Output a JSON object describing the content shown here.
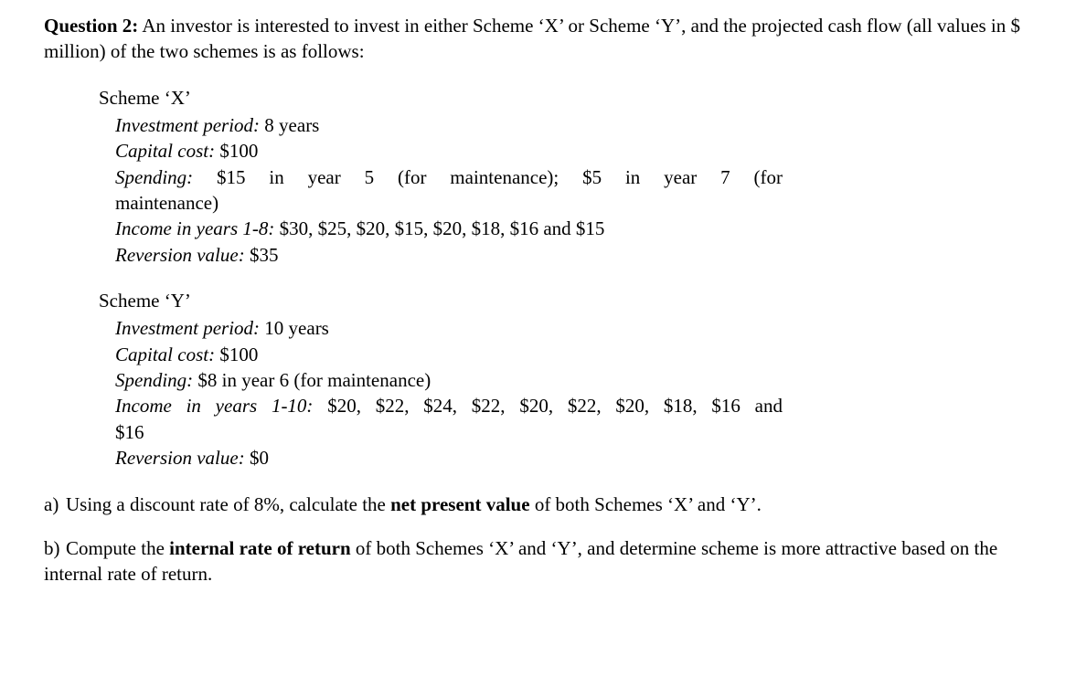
{
  "question": {
    "label": "Question 2:",
    "intro": "An investor is interested to invest in either Scheme ‘X’ or Scheme ‘Y’, and the projected cash flow (all values in $ million) of the two schemes is as follows:"
  },
  "schemeX": {
    "title": "Scheme ‘X’",
    "investment_period_label": "Investment period:",
    "investment_period_value": "8 years",
    "capital_cost_label": "Capital cost:",
    "capital_cost_value": "$100",
    "spending_label": "Spending:",
    "spending_line1_rest": "$15 in year 5 (for maintenance); $5 in year 7 (for",
    "spending_line2": "maintenance)",
    "income_label": "Income in years 1-8:",
    "income_value": "$30, $25, $20, $15, $20, $18, $16 and $15",
    "reversion_label": "Reversion value:",
    "reversion_value": "$35"
  },
  "schemeY": {
    "title": "Scheme ‘Y’",
    "investment_period_label": "Investment period:",
    "investment_period_value": "10 years",
    "capital_cost_label": "Capital cost:",
    "capital_cost_value": "$100",
    "spending_label": "Spending:",
    "spending_value": "$8 in year 6 (for maintenance)",
    "income_label": "Income in years 1-10:",
    "income_line1_rest": "$20, $22, $24, $22, $20, $22, $20, $18, $16 and",
    "income_line2": "$16",
    "reversion_label": "Reversion value:",
    "reversion_value": "$0"
  },
  "parts": {
    "a_marker": "a)",
    "a_pre": "Using a discount rate of 8%, calculate the ",
    "a_bold": "net present value",
    "a_post": " of both Schemes ‘X’ and ‘Y’.",
    "b_marker": "b)",
    "b_pre": "Compute the ",
    "b_bold": "internal rate of return",
    "b_post": " of both Schemes ‘X’ and ‘Y’, and determine scheme is more attractive based on the internal rate of return."
  },
  "style": {
    "font_family": "Times New Roman",
    "font_size_pt": 16,
    "text_color": "#000000",
    "background_color": "#ffffff"
  }
}
